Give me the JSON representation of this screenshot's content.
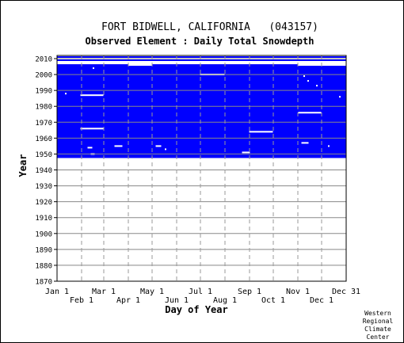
{
  "chart_data": {
    "type": "heatmap",
    "title": "FORT BIDWELL, CALIFORNIA   (043157)",
    "subtitle": "Observed Element : Daily Total Snowdepth",
    "xlabel": "Day of Year",
    "ylabel": "Year",
    "x_range_days": [
      1,
      366
    ],
    "ylim": [
      1870,
      2012
    ],
    "y_ticks": [
      1870,
      1880,
      1890,
      1900,
      1910,
      1920,
      1930,
      1940,
      1950,
      1960,
      1970,
      1980,
      1990,
      2000,
      2010
    ],
    "x_ticks_top_row": [
      {
        "label": "Jan 1",
        "day": 1
      },
      {
        "label": "Mar 1",
        "day": 60
      },
      {
        "label": "May 1",
        "day": 121
      },
      {
        "label": "Jul 1",
        "day": 182
      },
      {
        "label": "Sep 1",
        "day": 244
      },
      {
        "label": "Nov 1",
        "day": 305
      },
      {
        "label": "Dec 31",
        "day": 366
      }
    ],
    "x_ticks_bottom_row": [
      {
        "label": "Feb 1",
        "day": 32
      },
      {
        "label": "Apr 1",
        "day": 91
      },
      {
        "label": "Jun 1",
        "day": 152
      },
      {
        "label": "Aug 1",
        "day": 213
      },
      {
        "label": "Oct 1",
        "day": 274
      },
      {
        "label": "Dec 1",
        "day": 335
      }
    ],
    "grid": true,
    "colors": {
      "data_present": "#0000ff",
      "missing": "#ffffff",
      "grid_solid": "#888888",
      "grid_dashed": "#999999"
    },
    "data_present_blocks": [
      {
        "year_start": 1948,
        "year_end": 2006,
        "day_start": 1,
        "day_end": 366
      },
      {
        "year_start": 2009,
        "year_end": 2009,
        "day_start": 1,
        "day_end": 366
      },
      {
        "year_start": 2011,
        "year_end": 2011,
        "day_start": 1,
        "day_end": 366
      }
    ],
    "missing_gaps": [
      {
        "year": 2007,
        "day_start": 1,
        "day_end": 366
      },
      {
        "year": 2008,
        "day_start": 1,
        "day_end": 366
      },
      {
        "year": 2010,
        "day_start": 1,
        "day_end": 366
      },
      {
        "year": 2006,
        "day_start": 91,
        "day_end": 121
      },
      {
        "year": 2006,
        "day_start": 305,
        "day_end": 366
      },
      {
        "year": 2000,
        "day_start": 182,
        "day_end": 212
      },
      {
        "year": 1987,
        "day_start": 31,
        "day_end": 59
      },
      {
        "year": 1976,
        "day_start": 306,
        "day_end": 334
      },
      {
        "year": 1966,
        "day_start": 31,
        "day_end": 59
      },
      {
        "year": 1964,
        "day_start": 244,
        "day_end": 273
      },
      {
        "year": 1957,
        "day_start": 310,
        "day_end": 318
      },
      {
        "year": 1955,
        "day_start": 74,
        "day_end": 83
      },
      {
        "year": 1955,
        "day_start": 126,
        "day_end": 132
      },
      {
        "year": 1954,
        "day_start": 40,
        "day_end": 45
      },
      {
        "year": 1951,
        "day_start": 235,
        "day_end": 244
      },
      {
        "year": 1950,
        "day_start": 44,
        "day_end": 48
      }
    ],
    "missing_specks": [
      {
        "year": 2010,
        "day": 46
      },
      {
        "year": 2010,
        "day": 270
      },
      {
        "year": 2010,
        "day": 330
      },
      {
        "year": 2010,
        "day": 337
      },
      {
        "year": 2010,
        "day": 343
      },
      {
        "year": 2010,
        "day": 350
      },
      {
        "year": 2004,
        "day": 47
      },
      {
        "year": 1999,
        "day": 313
      },
      {
        "year": 1996,
        "day": 318
      },
      {
        "year": 1993,
        "day": 329
      },
      {
        "year": 1988,
        "day": 12
      },
      {
        "year": 1986,
        "day": 358
      },
      {
        "year": 1953,
        "day": 138
      },
      {
        "year": 1955,
        "day": 344
      }
    ]
  },
  "credit": [
    "Western",
    "Regional",
    "Climate",
    "Center"
  ]
}
